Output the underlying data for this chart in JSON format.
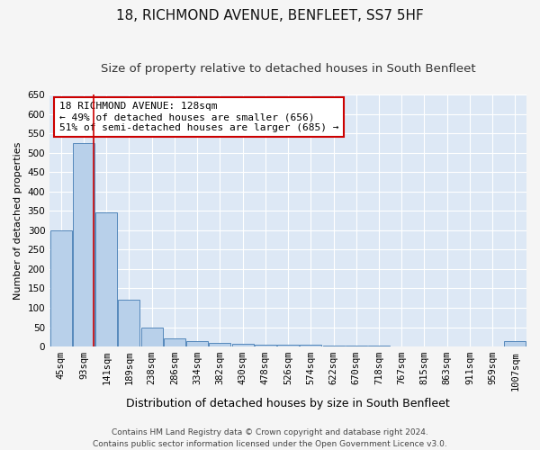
{
  "title": "18, RICHMOND AVENUE, BENFLEET, SS7 5HF",
  "subtitle": "Size of property relative to detached houses in South Benfleet",
  "xlabel": "Distribution of detached houses by size in South Benfleet",
  "ylabel": "Number of detached properties",
  "footer_line1": "Contains HM Land Registry data © Crown copyright and database right 2024.",
  "footer_line2": "Contains public sector information licensed under the Open Government Licence v3.0.",
  "bin_labels": [
    "45sqm",
    "93sqm",
    "141sqm",
    "189sqm",
    "238sqm",
    "286sqm",
    "334sqm",
    "382sqm",
    "430sqm",
    "478sqm",
    "526sqm",
    "574sqm",
    "622sqm",
    "670sqm",
    "718sqm",
    "767sqm",
    "815sqm",
    "863sqm",
    "911sqm",
    "959sqm",
    "1007sqm"
  ],
  "bar_values": [
    300,
    525,
    345,
    120,
    48,
    20,
    13,
    10,
    8,
    5,
    5,
    5,
    3,
    3,
    3,
    0,
    0,
    0,
    0,
    0,
    13
  ],
  "bar_color": "#b8d0ea",
  "bar_edge_color": "#5588bb",
  "background_color": "#dde8f5",
  "grid_color": "#ffffff",
  "annotation_text": "18 RICHMOND AVENUE: 128sqm\n← 49% of detached houses are smaller (656)\n51% of semi-detached houses are larger (685) →",
  "annotation_box_color": "#ffffff",
  "annotation_box_edge_color": "#cc0000",
  "red_line_x": 1.45,
  "ylim": [
    0,
    650
  ],
  "yticks": [
    0,
    50,
    100,
    150,
    200,
    250,
    300,
    350,
    400,
    450,
    500,
    550,
    600,
    650
  ],
  "title_fontsize": 11,
  "subtitle_fontsize": 9.5,
  "xlabel_fontsize": 9,
  "ylabel_fontsize": 8,
  "tick_fontsize": 7.5,
  "annotation_fontsize": 8,
  "footer_fontsize": 6.5
}
